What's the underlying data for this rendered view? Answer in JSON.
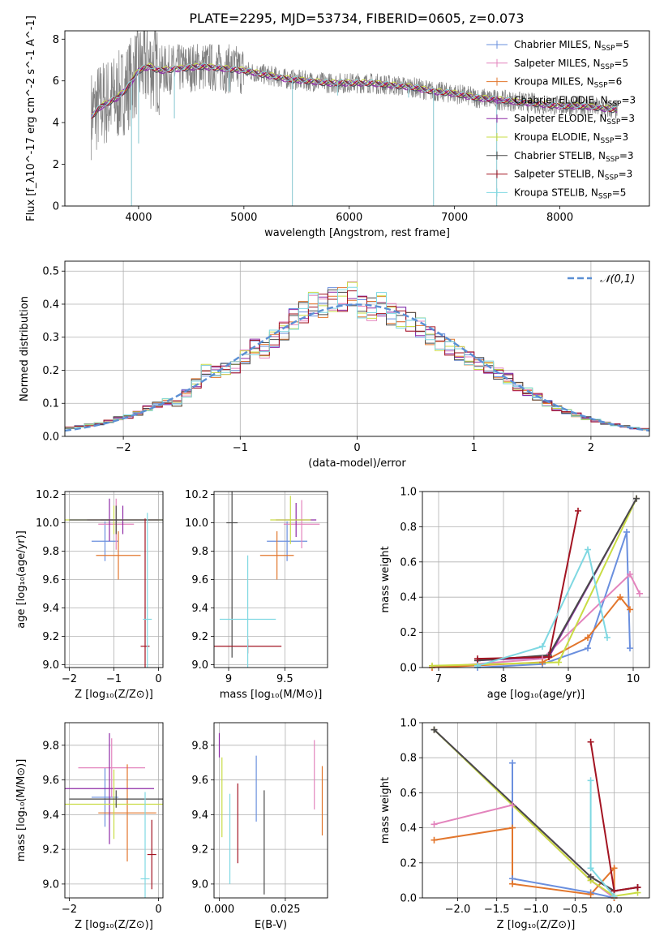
{
  "title": "PLATE=2295, MJD=53734, FIBERID=0605, z=0.073",
  "colors": {
    "Chabrier MILES": "#6a8fde",
    "Salpeter MILES": "#e384bd",
    "Kroupa MILES": "#e2762c",
    "Chabrier ELODIE": "#8e2aa6",
    "Salpeter ELODIE": "#8e2aa6",
    "Kroupa ELODIE": "#c9dc44",
    "Chabrier STELIB": "#4a4a4a",
    "Salpeter STELIB": "#a31422",
    "Kroupa STELIB": "#7fd8e2",
    "data": "#808080",
    "gaussian": "#5b8fd4"
  },
  "chart_data": [
    {
      "id": "spectrum",
      "type": "line",
      "xlabel": "wavelength [Angstrom, rest frame]",
      "ylabel": "Flux [f_λ10^-17 erg cm^-2 s^-1 A^-1]",
      "xlim": [
        3300,
        8850
      ],
      "ylim": [
        0,
        8.4
      ],
      "xticks": [
        4000,
        5000,
        6000,
        7000,
        8000
      ],
      "yticks": [
        0,
        2,
        4,
        6,
        8
      ],
      "legend_position": "top-right",
      "legend": [
        {
          "name": "Chabrier MILES",
          "n_ssp": 5
        },
        {
          "name": "Salpeter MILES",
          "n_ssp": 5
        },
        {
          "name": "Kroupa MILES",
          "n_ssp": 6
        },
        {
          "name": "Chabrier ELODIE",
          "n_ssp": 3
        },
        {
          "name": "Salpeter ELODIE",
          "n_ssp": 3
        },
        {
          "name": "Kroupa ELODIE",
          "n_ssp": 3
        },
        {
          "name": "Chabrier STELIB",
          "n_ssp": 3
        },
        {
          "name": "Salpeter STELIB",
          "n_ssp": 3
        },
        {
          "name": "Kroupa STELIB",
          "n_ssp": 5
        }
      ],
      "data_continuum": {
        "x": [
          3550,
          3650,
          3800,
          3900,
          4000,
          4100,
          4200,
          4400,
          4600,
          4800,
          5000,
          5200,
          5400,
          5600,
          5800,
          6000,
          6200,
          6400,
          6600,
          6800,
          7000,
          7200,
          7400,
          7600,
          7800,
          8000,
          8200,
          8400,
          8550
        ],
        "y": [
          4.4,
          4.9,
          5.2,
          5.8,
          6.6,
          6.8,
          6.5,
          6.6,
          6.7,
          6.6,
          6.5,
          6.3,
          6.1,
          6.0,
          5.9,
          5.9,
          5.9,
          5.8,
          5.7,
          5.5,
          5.4,
          5.2,
          5.1,
          5.0,
          4.9,
          4.8,
          4.8,
          4.7,
          4.6
        ]
      },
      "model_continuum": {
        "x": [
          3550,
          3650,
          3800,
          3900,
          4000,
          4100,
          4200,
          4400,
          4600,
          4800,
          5000,
          5200,
          5400,
          5600,
          5800,
          6000,
          6200,
          6400,
          6600,
          6800,
          7000,
          7200,
          7400,
          7600,
          7800,
          8000,
          8200,
          8400,
          8550
        ],
        "y": [
          4.3,
          4.8,
          5.2,
          5.7,
          6.5,
          6.7,
          6.5,
          6.6,
          6.7,
          6.6,
          6.5,
          6.3,
          6.1,
          6.0,
          5.9,
          5.9,
          5.9,
          5.8,
          5.7,
          5.5,
          5.4,
          5.2,
          5.1,
          5.0,
          4.9,
          4.8,
          4.8,
          4.7,
          4.6
        ]
      },
      "absorption_dips": [
        [
          3933,
          0
        ],
        [
          4000,
          3.0
        ],
        [
          4340,
          4.2
        ],
        [
          4861,
          5.5
        ],
        [
          5460,
          0
        ],
        [
          5890,
          5.3
        ],
        [
          6563,
          5.2
        ],
        [
          6800,
          0
        ],
        [
          7400,
          0
        ]
      ]
    },
    {
      "id": "residuals",
      "type": "line",
      "xlabel": "(data-model)/error",
      "ylabel": "Normed distribution",
      "xlim": [
        -2.5,
        2.5
      ],
      "ylim": [
        0,
        0.53
      ],
      "xticks": [
        -2,
        -1,
        0,
        1,
        2
      ],
      "yticks": [
        0.0,
        0.1,
        0.2,
        0.3,
        0.4,
        0.5
      ],
      "grid": true,
      "legend_position": "top-right",
      "legend_label": "𝒩(0,1)",
      "bin_width": 0.1,
      "bin_start": -2.5,
      "histogram_shape": [
        0.026,
        0.03,
        0.035,
        0.038,
        0.045,
        0.055,
        0.06,
        0.07,
        0.085,
        0.095,
        0.105,
        0.1,
        0.13,
        0.16,
        0.2,
        0.195,
        0.205,
        0.21,
        0.24,
        0.27,
        0.26,
        0.295,
        0.32,
        0.355,
        0.375,
        0.4,
        0.395,
        0.415,
        0.415,
        0.43,
        0.39,
        0.385,
        0.4,
        0.37,
        0.36,
        0.345,
        0.33,
        0.305,
        0.285,
        0.27,
        0.25,
        0.235,
        0.22,
        0.21,
        0.19,
        0.175,
        0.15,
        0.135,
        0.12,
        0.1,
        0.085,
        0.075,
        0.065,
        0.055,
        0.048,
        0.04,
        0.035,
        0.03,
        0.025,
        0.022
      ]
    },
    {
      "id": "age-vs-Z",
      "type": "scatter",
      "xlabel": "Z [log₁₀(Z/Z⊙)]",
      "ylabel": "age  [log₁₀(age/yr)]",
      "xlim": [
        -2.1,
        0.1
      ],
      "ylim": [
        8.98,
        10.22
      ],
      "xticks": [
        -2,
        -1,
        0
      ],
      "yticks": [
        9.0,
        9.2,
        9.4,
        9.6,
        9.8,
        10.0,
        10.2
      ],
      "grid": true,
      "points": [
        {
          "series": "Chabrier MILES",
          "x": -1.2,
          "y": 9.87,
          "xerr": 0.3,
          "yerr": 0.14
        },
        {
          "series": "Salpeter MILES",
          "x": -0.95,
          "y": 9.99,
          "xerr": 0.4,
          "yerr": 0.18
        },
        {
          "series": "Kroupa MILES",
          "x": -0.9,
          "y": 9.77,
          "xerr": 0.5,
          "yerr": 0.17
        },
        {
          "series": "Chabrier ELODIE",
          "x": -1.1,
          "y": 10.02,
          "xerr": 0.2,
          "yerr": 0.15
        },
        {
          "series": "Salpeter ELODIE",
          "x": -0.8,
          "y": 10.02,
          "xerr": 0.8,
          "yerr": 0.1
        },
        {
          "series": "Kroupa ELODIE",
          "x": -1.0,
          "y": 10.02,
          "xerr": 1.1,
          "yerr": 0.1
        },
        {
          "series": "Chabrier STELIB",
          "x": -0.95,
          "y": 10.02,
          "xerr": 1.05,
          "yerr": 0.1
        },
        {
          "series": "Salpeter STELIB",
          "x": -0.3,
          "y": 9.13,
          "xerr": 0.1,
          "yerr": 0.9
        },
        {
          "series": "Kroupa STELIB",
          "x": -0.25,
          "y": 9.32,
          "xerr": 0.1,
          "yerr": 0.75
        }
      ]
    },
    {
      "id": "age-vs-mass",
      "type": "scatter",
      "xlabel": "mass [log₁₀(M/M⊙)]",
      "ylabel": "",
      "xlim": [
        8.87,
        9.88
      ],
      "ylim": [
        8.98,
        10.22
      ],
      "xticks": [
        9.0,
        9.5
      ],
      "yticks": [
        9.0,
        9.2,
        9.4,
        9.6,
        9.8,
        10.0,
        10.2
      ],
      "grid": true,
      "points": [
        {
          "series": "Chabrier MILES",
          "x": 9.52,
          "y": 9.87,
          "xerr": 0.18,
          "yerr": 0.14
        },
        {
          "series": "Salpeter MILES",
          "x": 9.65,
          "y": 9.99,
          "xerr": 0.16,
          "yerr": 0.17
        },
        {
          "series": "Kroupa MILES",
          "x": 9.43,
          "y": 9.77,
          "xerr": 0.15,
          "yerr": 0.17
        },
        {
          "series": "Chabrier ELODIE",
          "x": 9.6,
          "y": 10.02,
          "xerr": 0.18,
          "yerr": 0.12
        },
        {
          "series": "Kroupa ELODIE",
          "x": 9.55,
          "y": 10.02,
          "xerr": 0.18,
          "yerr": 0.17
        },
        {
          "series": "Chabrier STELIB",
          "x": 9.03,
          "y": 10.0,
          "xerr": 0.05,
          "yerr": 0.95
        },
        {
          "series": "Salpeter STELIB",
          "x": 9.17,
          "y": 9.13,
          "xerr": 0.3,
          "yerr": 0.05
        },
        {
          "series": "Kroupa STELIB",
          "x": 9.17,
          "y": 9.32,
          "xerr": 0.25,
          "yerr": 0.45
        }
      ]
    },
    {
      "id": "mass-weight-vs-age",
      "type": "line",
      "xlabel": "age  [log₁₀(age/yr)]",
      "ylabel": "mass weight",
      "xlim": [
        6.75,
        10.25
      ],
      "ylim": [
        0,
        1.0
      ],
      "xticks": [
        7,
        8,
        9,
        10
      ],
      "yticks": [
        0.0,
        0.2,
        0.4,
        0.6,
        0.8,
        1.0
      ],
      "grid": true,
      "series": [
        {
          "name": "Chabrier MILES",
          "x": [
            7.6,
            8.6,
            9.3,
            9.9,
            9.95
          ],
          "y": [
            0.0,
            0.02,
            0.11,
            0.77,
            0.11
          ]
        },
        {
          "name": "Salpeter MILES",
          "x": [
            6.9,
            8.6,
            9.95,
            10.1
          ],
          "y": [
            0.0,
            0.05,
            0.53,
            0.42
          ]
        },
        {
          "name": "Kroupa MILES",
          "x": [
            6.9,
            8.6,
            9.3,
            9.8,
            9.95
          ],
          "y": [
            0.0,
            0.03,
            0.17,
            0.4,
            0.33
          ]
        },
        {
          "name": "Chabrier ELODIE",
          "x": [
            7.6,
            8.7,
            10.05
          ],
          "y": [
            0.04,
            0.06,
            0.96
          ]
        },
        {
          "name": "Kroupa ELODIE",
          "x": [
            6.9,
            8.85,
            10.05
          ],
          "y": [
            0.01,
            0.03,
            0.96
          ]
        },
        {
          "name": "Chabrier STELIB",
          "x": [
            7.6,
            8.7,
            10.05
          ],
          "y": [
            0.04,
            0.07,
            0.96
          ]
        },
        {
          "name": "Salpeter STELIB",
          "x": [
            7.6,
            8.7,
            9.15
          ],
          "y": [
            0.05,
            0.06,
            0.89
          ]
        },
        {
          "name": "Kroupa STELIB",
          "x": [
            7.6,
            8.6,
            9.3,
            9.6
          ],
          "y": [
            0.01,
            0.12,
            0.67,
            0.17
          ]
        }
      ]
    },
    {
      "id": "mass-vs-Z",
      "type": "scatter",
      "xlabel": "Z [log₁₀(Z/Z⊙)]",
      "ylabel": "mass [log₁₀(M/M⊙)]",
      "xlim": [
        -2.1,
        0.1
      ],
      "ylim": [
        8.92,
        9.93
      ],
      "xticks": [
        -2,
        0
      ],
      "yticks": [
        9.0,
        9.2,
        9.4,
        9.6,
        9.8
      ],
      "grid": true,
      "points": [
        {
          "series": "Chabrier MILES",
          "x": -1.2,
          "y": 9.5,
          "xerr": 0.3,
          "yerr": 0.17
        },
        {
          "series": "Salpeter MILES",
          "x": -1.05,
          "y": 9.67,
          "xerr": 0.75,
          "yerr": 0.17
        },
        {
          "series": "Kroupa MILES",
          "x": -0.7,
          "y": 9.41,
          "xerr": 0.65,
          "yerr": 0.28
        },
        {
          "series": "Chabrier ELODIE",
          "x": -1.1,
          "y": 9.55,
          "xerr": 1.0,
          "yerr": 0.32
        },
        {
          "series": "Kroupa ELODIE",
          "x": -1.0,
          "y": 9.46,
          "xerr": 1.1,
          "yerr": 0.2
        },
        {
          "series": "Chabrier STELIB",
          "x": -0.95,
          "y": 9.49,
          "xerr": 1.05,
          "yerr": 0.05
        },
        {
          "series": "Salpeter STELIB",
          "x": -0.15,
          "y": 9.17,
          "xerr": 0.1,
          "yerr": 0.2
        },
        {
          "series": "Kroupa STELIB",
          "x": -0.3,
          "y": 9.03,
          "xerr": 0.1,
          "yerr": 0.5
        }
      ]
    },
    {
      "id": "mass-vs-ebv",
      "type": "scatter",
      "xlabel": "E(B-V)",
      "ylabel": "",
      "xlim": [
        -0.002,
        0.041
      ],
      "ylim": [
        8.92,
        9.93
      ],
      "xticks": [
        0.0,
        0.025
      ],
      "xticklabels": [
        "0.000",
        "0.025"
      ],
      "yticks": [
        9.0,
        9.2,
        9.4,
        9.6,
        9.8
      ],
      "grid": true,
      "points": [
        {
          "series": "Chabrier MILES",
          "x": 0.014,
          "y": 9.55,
          "yerr": 0.19
        },
        {
          "series": "Salpeter MILES",
          "x": 0.036,
          "y": 9.63,
          "yerr": 0.2
        },
        {
          "series": "Kroupa MILES",
          "x": 0.039,
          "y": 9.48,
          "yerr": 0.2
        },
        {
          "series": "Chabrier ELODIE",
          "x": 0.0,
          "y": 9.8,
          "yerr": 0.07
        },
        {
          "series": "Kroupa ELODIE",
          "x": 0.001,
          "y": 9.5,
          "yerr": 0.23
        },
        {
          "series": "Chabrier STELIB",
          "x": 0.017,
          "y": 9.24,
          "yerr": 0.3
        },
        {
          "series": "Salpeter STELIB",
          "x": 0.007,
          "y": 9.35,
          "yerr": 0.23
        },
        {
          "series": "Kroupa STELIB",
          "x": 0.004,
          "y": 9.26,
          "yerr": 0.26
        }
      ]
    },
    {
      "id": "mass-weight-vs-Z",
      "type": "line",
      "xlabel": "Z [log₁₀(Z/Z⊙)]",
      "ylabel": "mass weight",
      "xlim": [
        -2.45,
        0.45
      ],
      "ylim": [
        0,
        1.0
      ],
      "xticks": [
        -2.0,
        -1.5,
        -1.0,
        -0.5,
        0.0
      ],
      "xticklabels": [
        "−2.0",
        "−1.5",
        "−1.0",
        "−0.5",
        "0.0"
      ],
      "yticks": [
        0.0,
        0.2,
        0.4,
        0.6,
        0.8,
        1.0
      ],
      "grid": true,
      "series": [
        {
          "name": "Chabrier MILES",
          "x": [
            -1.3,
            -1.3,
            -0.3,
            0.0
          ],
          "y": [
            0.77,
            0.11,
            0.03,
            0.0
          ]
        },
        {
          "name": "Salpeter MILES",
          "x": [
            -2.3,
            -1.3,
            -0.3,
            0.0
          ],
          "y": [
            0.42,
            0.53,
            0.1,
            0.0
          ]
        },
        {
          "name": "Kroupa MILES",
          "x": [
            -2.3,
            -1.3,
            -1.3,
            -0.3,
            0.0,
            0.0
          ],
          "y": [
            0.33,
            0.4,
            0.08,
            0.02,
            0.17,
            0.0
          ]
        },
        {
          "name": "Chabrier ELODIE",
          "x": [
            -2.3,
            -0.3,
            0.0,
            0.3
          ],
          "y": [
            0.96,
            0.12,
            0.04,
            0.06
          ]
        },
        {
          "name": "Kroupa ELODIE",
          "x": [
            -2.3,
            -0.3,
            0.0,
            0.3
          ],
          "y": [
            0.96,
            0.1,
            0.01,
            0.03
          ]
        },
        {
          "name": "Chabrier STELIB",
          "x": [
            -2.3,
            -0.3,
            0.0,
            0.3
          ],
          "y": [
            0.96,
            0.12,
            0.04,
            0.06
          ]
        },
        {
          "name": "Salpeter STELIB",
          "x": [
            -0.3,
            0.0,
            0.3
          ],
          "y": [
            0.89,
            0.04,
            0.06
          ]
        },
        {
          "name": "Kroupa STELIB",
          "x": [
            -0.3,
            -0.3,
            0.0
          ],
          "y": [
            0.67,
            0.17,
            0.01
          ]
        }
      ]
    }
  ]
}
